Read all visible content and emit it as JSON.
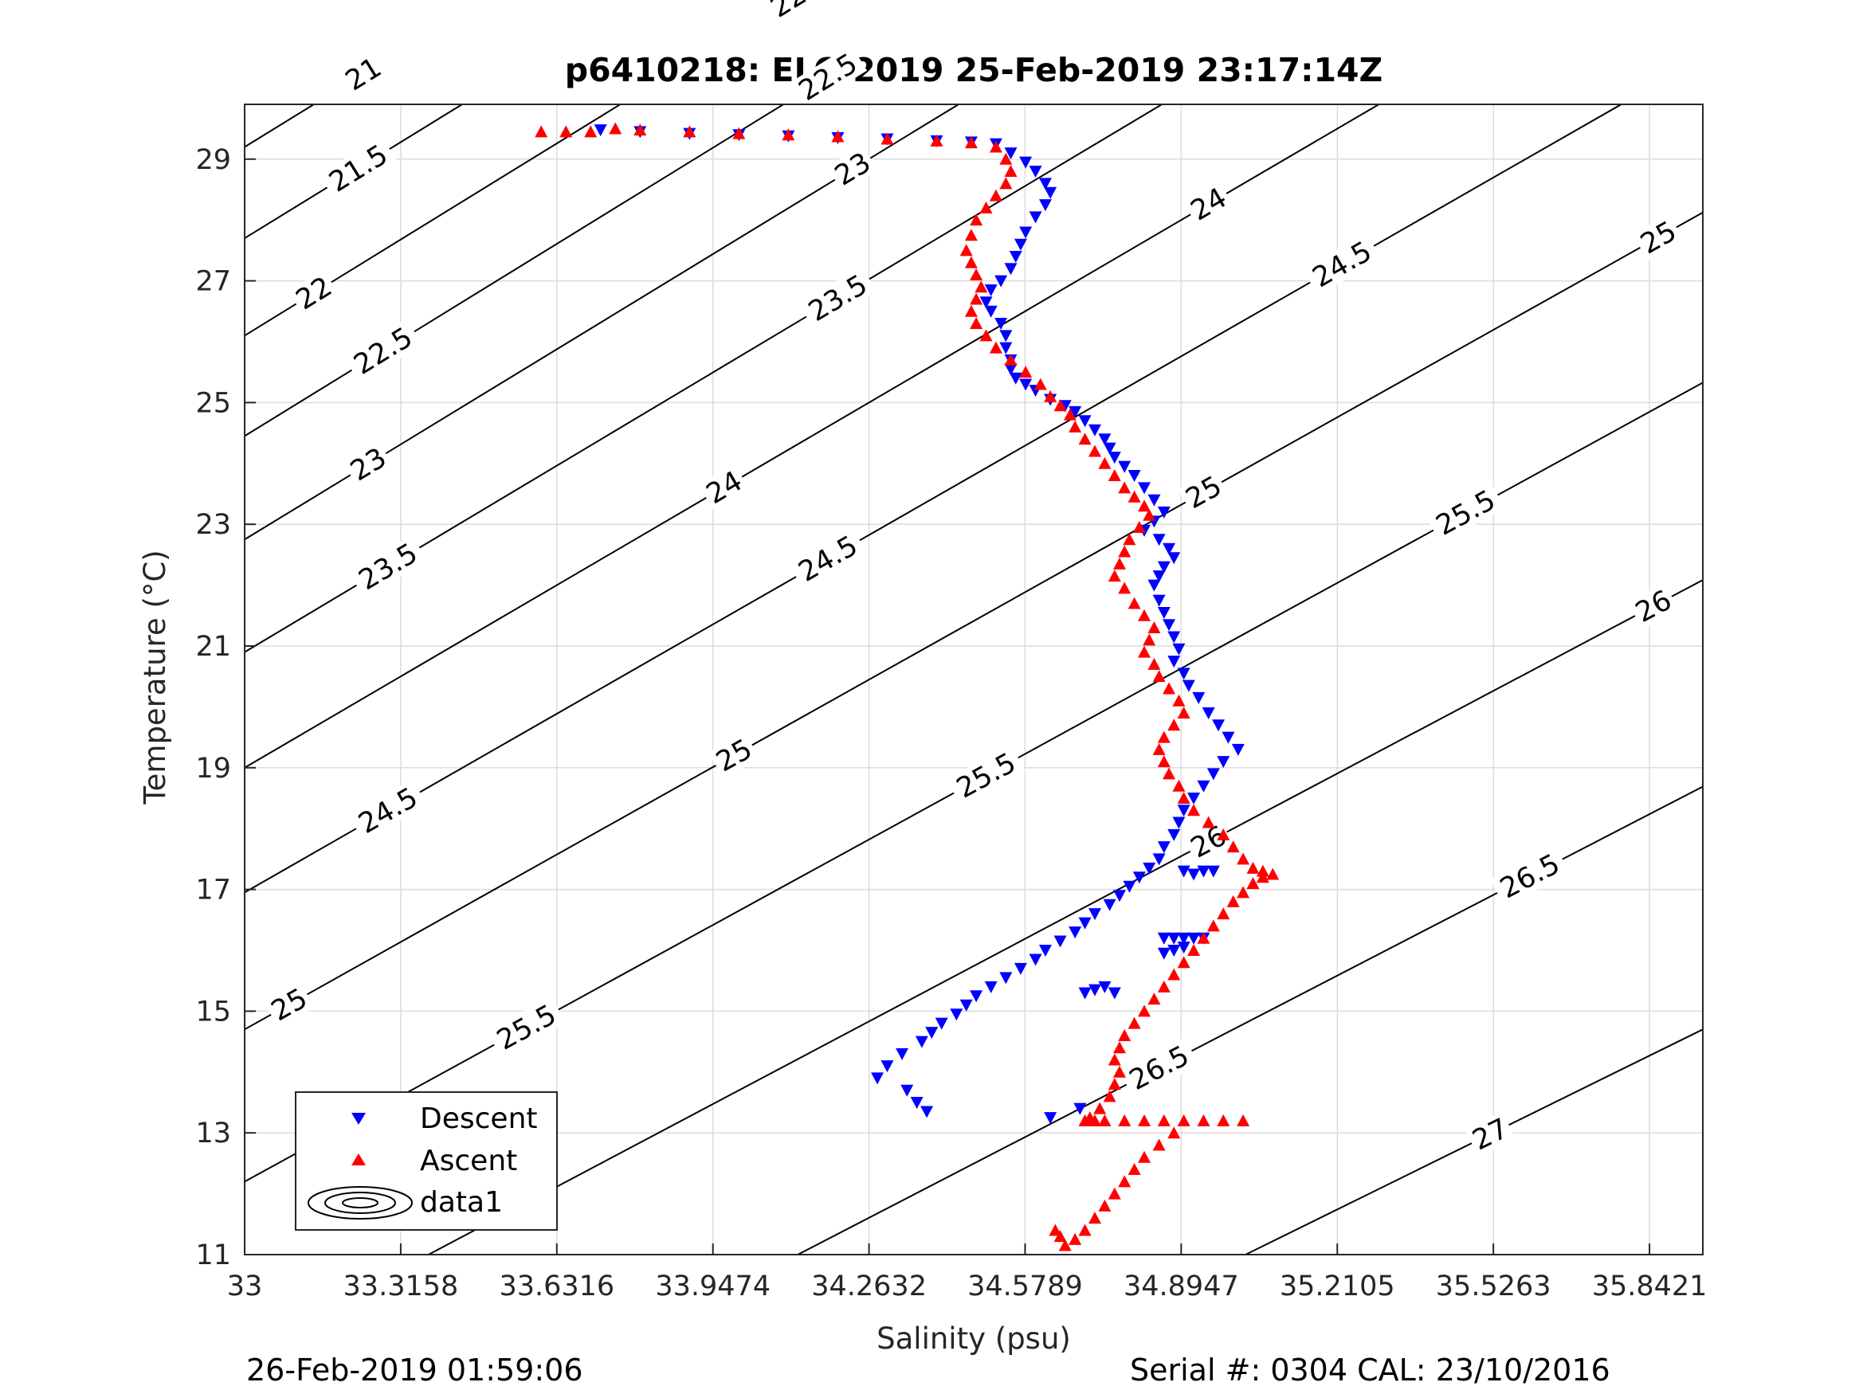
{
  "chart_data": {
    "type": "scatter",
    "title": "p6410218: ELO 2019 25-Feb-2019 23:17:14Z",
    "xlabel": "Salinity (psu)",
    "ylabel": "Temperature (°C)",
    "xlim": [
      33,
      35.95
    ],
    "ylim": [
      11,
      29.9
    ],
    "xticks": [
      "33",
      "33.3158",
      "33.6316",
      "33.9474",
      "34.2632",
      "34.5789",
      "34.8947",
      "35.2105",
      "35.5263",
      "35.8421"
    ],
    "yticks": [
      "11",
      "13",
      "15",
      "17",
      "19",
      "21",
      "23",
      "25",
      "27",
      "29"
    ],
    "grid": true,
    "legend_position": "bottom-left",
    "legend": [
      "Descent",
      "Ascent",
      "data1"
    ],
    "footer_left": "26-Feb-2019 01:59:06",
    "footer_right": "Serial #: 0304  CAL: 23/10/2016",
    "colors": {
      "descent": "#0000ff",
      "ascent": "#ff0000",
      "contour": "#000000",
      "grid": "#dcdcdc"
    },
    "contours": [
      {
        "level": "21",
        "t0": 29.2,
        "slope": 5.0
      },
      {
        "level": "21.5",
        "t0": 27.7,
        "slope": 5.0
      },
      {
        "level": "22",
        "t0": 26.1,
        "slope": 5.0
      },
      {
        "level": "22.5",
        "t0": 24.45,
        "slope": 5.0
      },
      {
        "level": "23",
        "t0": 22.75,
        "slope": 4.95
      },
      {
        "level": "23.5",
        "t0": 20.9,
        "slope": 4.85
      },
      {
        "level": "24",
        "t0": 19.0,
        "slope": 4.75
      },
      {
        "level": "24.5",
        "t0": 16.95,
        "slope": 4.65
      },
      {
        "level": "25",
        "t0": 14.7,
        "slope": 4.55
      },
      {
        "level": "25.5",
        "t0": 12.2,
        "slope": 4.45
      },
      {
        "level": "26",
        "t0": 9.4,
        "slope": 4.3
      },
      {
        "level": "26.5",
        "t0": 6.3,
        "slope": 4.2
      },
      {
        "level": "27",
        "t0": 2.9,
        "slope": 4.0
      }
    ],
    "contour_labels": [
      {
        "text": "21",
        "s": 33.24
      },
      {
        "text": "21.5",
        "s": 34.19
      },
      {
        "text": "22",
        "s": 35.33
      },
      {
        "text": "21.5",
        "s": 33.23
      },
      {
        "text": "22",
        "s": 34.1
      },
      {
        "text": "22.5",
        "s": 35.4
      },
      {
        "text": "22",
        "s": 33.14
      },
      {
        "text": "22.5",
        "s": 34.18
      },
      {
        "text": "23",
        "s": 35.38
      },
      {
        "text": "22.5",
        "s": 33.28
      },
      {
        "text": "23",
        "s": 34.23
      },
      {
        "text": "23.5",
        "s": 35.38
      },
      {
        "text": "23",
        "s": 33.25
      },
      {
        "text": "23.5",
        "s": 34.2
      },
      {
        "text": "24",
        "s": 35.85
      },
      {
        "text": "23.5",
        "s": 33.29
      },
      {
        "text": "24",
        "s": 33.97
      },
      {
        "text": "24",
        "s": 34.95
      },
      {
        "text": "24.5",
        "s": 35.22
      },
      {
        "text": "24.5",
        "s": 34.18
      },
      {
        "text": "25",
        "s": 35.86
      },
      {
        "text": "24.5",
        "s": 33.29
      },
      {
        "text": "25",
        "s": 33.99
      },
      {
        "text": "25",
        "s": 34.94
      },
      {
        "text": "25.5",
        "s": 35.47
      },
      {
        "text": "25.5",
        "s": 34.5
      },
      {
        "text": "26",
        "s": 35.85
      },
      {
        "text": "25",
        "s": 33.09
      },
      {
        "text": "25.5",
        "s": 33.57
      },
      {
        "text": "26",
        "s": 34.95
      },
      {
        "text": "26.5",
        "s": 35.6
      },
      {
        "text": "26.5",
        "s": 34.85
      },
      {
        "text": "27",
        "s": 35.52
      }
    ],
    "series": [
      {
        "name": "Descent",
        "x": [
          33.72,
          33.8,
          33.9,
          34.0,
          34.1,
          34.2,
          34.3,
          34.4,
          34.47,
          34.52,
          34.55,
          34.58,
          34.6,
          34.62,
          34.63,
          34.62,
          34.6,
          34.58,
          34.57,
          34.56,
          34.55,
          34.53,
          34.51,
          34.5,
          34.51,
          34.53,
          34.54,
          34.54,
          34.55,
          34.55,
          34.56,
          34.58,
          34.6,
          34.63,
          34.66,
          34.68,
          34.7,
          34.72,
          34.74,
          34.75,
          34.76,
          34.78,
          34.8,
          34.82,
          34.84,
          34.86,
          34.84,
          34.82,
          34.85,
          34.87,
          34.88,
          34.86,
          34.85,
          34.84,
          34.85,
          34.86,
          34.87,
          34.88,
          34.89,
          34.88,
          34.9,
          34.91,
          34.93,
          34.95,
          34.97,
          34.99,
          35.01,
          34.98,
          34.96,
          34.94,
          34.92,
          34.9,
          34.89,
          34.88,
          34.86,
          34.85,
          34.83,
          34.81,
          34.79,
          34.77,
          34.75,
          34.72,
          34.7,
          34.68,
          34.65,
          34.62,
          34.6,
          34.57,
          34.54,
          34.51,
          34.48,
          34.46,
          34.44,
          34.41,
          34.39,
          34.37,
          34.33,
          34.3,
          34.28,
          34.34,
          34.36,
          34.38,
          34.63,
          34.69,
          34.86,
          34.88,
          34.9,
          34.92,
          34.94,
          34.9,
          34.88,
          34.86,
          34.96,
          34.94,
          34.92,
          34.9,
          34.7,
          34.72,
          34.74,
          34.76
        ],
        "y": [
          29.48,
          29.45,
          29.42,
          29.4,
          29.38,
          29.35,
          29.33,
          29.3,
          29.28,
          29.25,
          29.1,
          28.95,
          28.8,
          28.6,
          28.45,
          28.25,
          28.05,
          27.8,
          27.6,
          27.4,
          27.2,
          27.0,
          26.85,
          26.65,
          26.5,
          26.3,
          26.1,
          25.9,
          25.7,
          25.55,
          25.4,
          25.3,
          25.2,
          25.05,
          24.95,
          24.85,
          24.7,
          24.55,
          24.4,
          24.25,
          24.1,
          23.95,
          23.8,
          23.6,
          23.4,
          23.2,
          23.05,
          22.9,
          22.75,
          22.6,
          22.45,
          22.3,
          22.15,
          22.0,
          21.75,
          21.55,
          21.35,
          21.15,
          20.95,
          20.75,
          20.55,
          20.35,
          20.15,
          19.9,
          19.7,
          19.5,
          19.3,
          19.1,
          18.9,
          18.7,
          18.5,
          18.3,
          18.1,
          17.9,
          17.7,
          17.5,
          17.35,
          17.2,
          17.05,
          16.9,
          16.75,
          16.6,
          16.45,
          16.3,
          16.15,
          16.0,
          15.85,
          15.7,
          15.55,
          15.4,
          15.25,
          15.1,
          14.95,
          14.8,
          14.65,
          14.5,
          14.3,
          14.1,
          13.9,
          13.7,
          13.5,
          13.35,
          13.25,
          13.4,
          16.2,
          16.2,
          16.2,
          16.2,
          16.2,
          16.05,
          16.0,
          15.95,
          17.3,
          17.3,
          17.25,
          17.3,
          15.3,
          15.35,
          15.4,
          15.3
        ]
      },
      {
        "name": "Ascent",
        "x": [
          33.6,
          33.65,
          33.7,
          33.75,
          33.8,
          33.9,
          34.0,
          34.1,
          34.2,
          34.3,
          34.4,
          34.47,
          34.52,
          34.54,
          34.55,
          34.54,
          34.52,
          34.5,
          34.48,
          34.47,
          34.46,
          34.47,
          34.48,
          34.49,
          34.48,
          34.47,
          34.48,
          34.5,
          34.52,
          34.55,
          34.58,
          34.61,
          34.63,
          34.65,
          34.67,
          34.68,
          34.7,
          34.72,
          34.74,
          34.76,
          34.78,
          34.8,
          34.82,
          34.83,
          34.81,
          34.79,
          34.78,
          34.77,
          34.76,
          34.78,
          34.8,
          34.82,
          34.84,
          34.83,
          34.82,
          34.84,
          34.85,
          34.87,
          34.89,
          34.9,
          34.88,
          34.86,
          34.85,
          34.86,
          34.87,
          34.89,
          34.9,
          34.92,
          34.95,
          34.98,
          35.0,
          35.02,
          35.04,
          35.06,
          35.08,
          35.06,
          35.04,
          35.02,
          35.0,
          34.98,
          34.96,
          34.94,
          34.92,
          34.9,
          34.88,
          34.86,
          34.84,
          34.82,
          34.8,
          34.78,
          34.77,
          34.76,
          34.77,
          34.76,
          34.75,
          34.73,
          34.71,
          34.7,
          34.72,
          34.74,
          34.78,
          34.82,
          34.86,
          34.9,
          34.94,
          34.98,
          35.02,
          34.88,
          34.85,
          34.82,
          34.8,
          34.78,
          34.76,
          34.74,
          34.72,
          34.7,
          34.68,
          34.66,
          34.65,
          34.64
        ],
        "y": [
          29.45,
          29.45,
          29.45,
          29.5,
          29.48,
          29.45,
          29.42,
          29.4,
          29.37,
          29.33,
          29.3,
          29.27,
          29.2,
          29.0,
          28.8,
          28.6,
          28.4,
          28.2,
          28.0,
          27.75,
          27.5,
          27.3,
          27.1,
          26.9,
          26.7,
          26.5,
          26.3,
          26.1,
          25.9,
          25.7,
          25.5,
          25.3,
          25.1,
          24.95,
          24.8,
          24.6,
          24.4,
          24.2,
          24.0,
          23.8,
          23.6,
          23.45,
          23.3,
          23.15,
          22.95,
          22.75,
          22.55,
          22.35,
          22.15,
          21.95,
          21.7,
          21.5,
          21.3,
          21.1,
          20.9,
          20.7,
          20.5,
          20.3,
          20.1,
          19.9,
          19.7,
          19.5,
          19.3,
          19.1,
          18.9,
          18.7,
          18.5,
          18.3,
          18.1,
          17.9,
          17.7,
          17.5,
          17.35,
          17.3,
          17.25,
          17.2,
          17.1,
          16.95,
          16.8,
          16.6,
          16.4,
          16.2,
          16.0,
          15.8,
          15.6,
          15.4,
          15.2,
          15.0,
          14.8,
          14.6,
          14.4,
          14.2,
          14.0,
          13.8,
          13.6,
          13.4,
          13.25,
          13.2,
          13.2,
          13.2,
          13.2,
          13.2,
          13.2,
          13.2,
          13.2,
          13.2,
          13.2,
          13.0,
          12.8,
          12.6,
          12.4,
          12.2,
          12.0,
          11.8,
          11.6,
          11.4,
          11.25,
          11.15,
          11.3,
          11.4
        ]
      }
    ]
  }
}
